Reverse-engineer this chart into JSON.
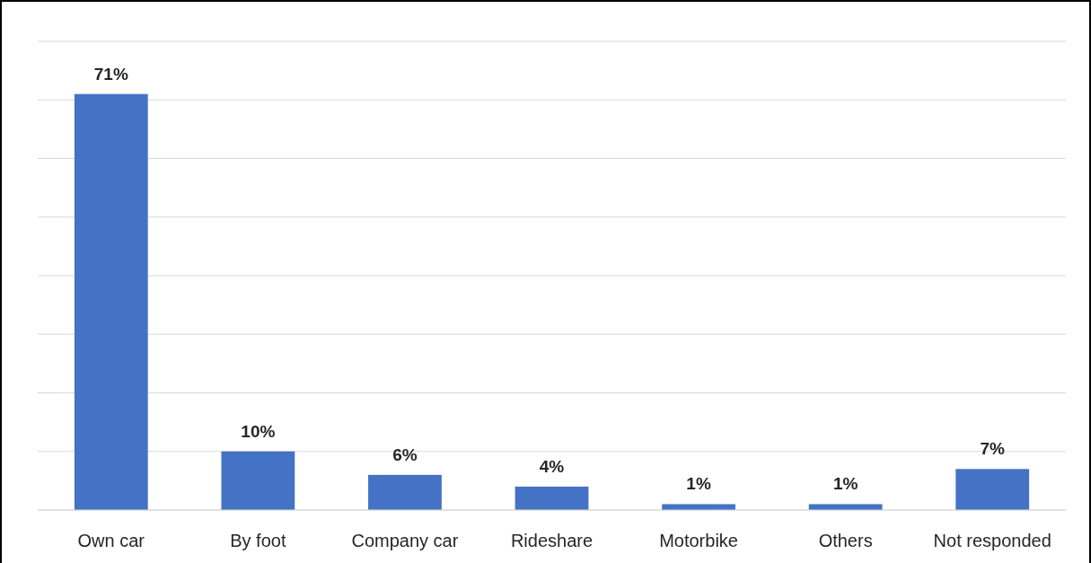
{
  "chart_data": {
    "type": "bar",
    "categories": [
      "Own car",
      "By foot",
      "Company car",
      "Rideshare",
      "Motorbike",
      "Others",
      "Not responded"
    ],
    "values": [
      71,
      10,
      6,
      4,
      1,
      1,
      7
    ],
    "color": "#4472c4",
    "value_labels": [
      "71%",
      "10%",
      "6%",
      "4%",
      "1%",
      "1%",
      "7%"
    ],
    "ylim": [
      0,
      80
    ],
    "yticks": [
      {
        "value": 0,
        "label": null
      },
      {
        "value": 10,
        "label": null
      },
      {
        "value": 20,
        "label": null
      },
      {
        "value": 30,
        "label": null
      },
      {
        "value": 40,
        "label": null
      },
      {
        "value": 50,
        "label": null
      },
      {
        "value": 60,
        "label": null
      },
      {
        "value": 70,
        "label": null
      },
      {
        "value": 80,
        "label": null
      }
    ],
    "grid": "y",
    "tick_labels": "x"
  }
}
